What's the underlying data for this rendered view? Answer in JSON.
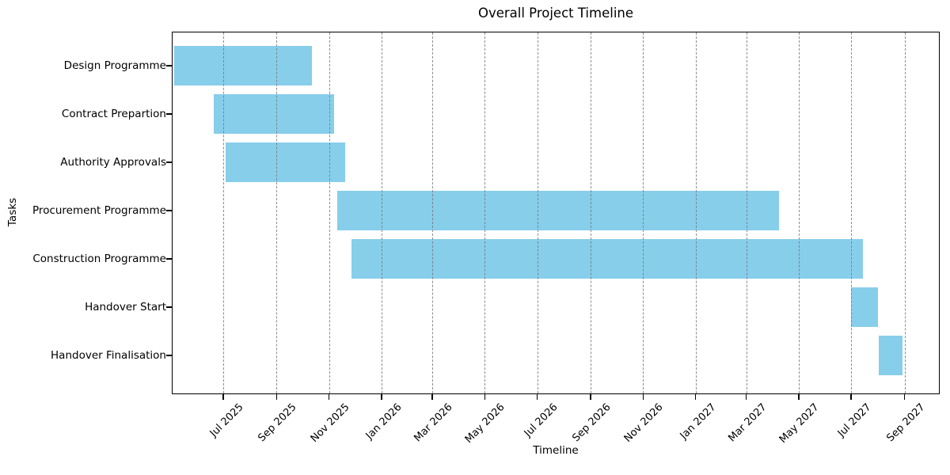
{
  "chart_data": {
    "type": "bar",
    "variant": "gantt-horizontal",
    "title": "Overall Project Timeline",
    "xlabel": "Timeline",
    "ylabel": "Tasks",
    "bar_color": "#87CEEB",
    "grid": {
      "axis": "x",
      "linestyle": "dashed",
      "color": "#787878",
      "drawn_over_bars": true
    },
    "axis_range": {
      "start": "2025-05-03",
      "end": "2027-10-11"
    },
    "x_ticks": [
      {
        "label": "Jul 2025",
        "date": "2025-07-01"
      },
      {
        "label": "Sep 2025",
        "date": "2025-09-01"
      },
      {
        "label": "Nov 2025",
        "date": "2025-11-01"
      },
      {
        "label": "Jan 2026",
        "date": "2026-01-01"
      },
      {
        "label": "Mar 2026",
        "date": "2026-03-01"
      },
      {
        "label": "May 2026",
        "date": "2026-05-01"
      },
      {
        "label": "Jul 2026",
        "date": "2026-07-01"
      },
      {
        "label": "Sep 2026",
        "date": "2026-09-01"
      },
      {
        "label": "Nov 2026",
        "date": "2026-11-01"
      },
      {
        "label": "Jan 2027",
        "date": "2027-01-01"
      },
      {
        "label": "Mar 2027",
        "date": "2027-03-01"
      },
      {
        "label": "May 2027",
        "date": "2027-05-01"
      },
      {
        "label": "Jul 2027",
        "date": "2027-07-01"
      },
      {
        "label": "Sep 2027",
        "date": "2027-09-01"
      }
    ],
    "tasks": [
      {
        "name": "Design Programme",
        "start": "2025-05-05",
        "end": "2025-10-12"
      },
      {
        "name": "Contract Prepartion",
        "start": "2025-06-20",
        "end": "2025-11-07"
      },
      {
        "name": "Authority Approvals",
        "start": "2025-07-04",
        "end": "2025-11-20"
      },
      {
        "name": "Procurement Programme",
        "start": "2025-11-10",
        "end": "2027-04-08"
      },
      {
        "name": "Construction Programme",
        "start": "2025-11-27",
        "end": "2027-07-15"
      },
      {
        "name": "Handover Start",
        "start": "2027-07-01",
        "end": "2027-08-01"
      },
      {
        "name": "Handover Finalisation",
        "start": "2027-08-02",
        "end": "2027-08-30"
      }
    ]
  }
}
